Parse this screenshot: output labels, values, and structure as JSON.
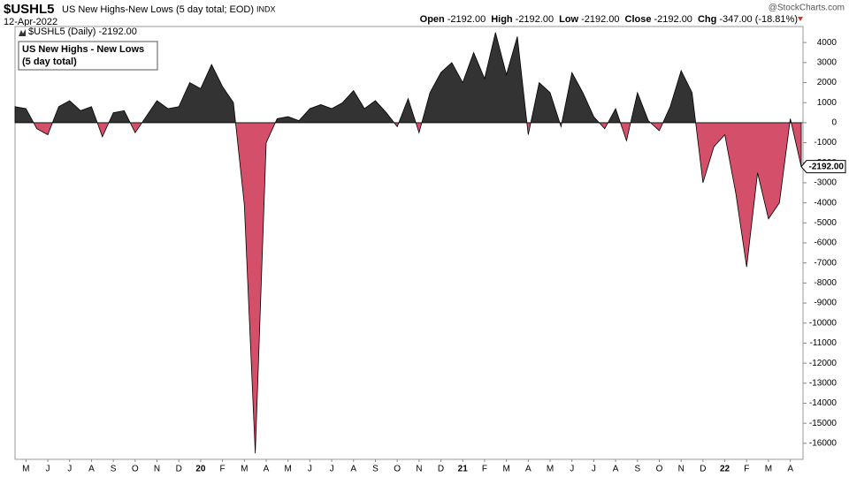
{
  "header": {
    "symbol": "$USHL5",
    "description": "US New Highs-New Lows (5 day total; EOD)",
    "exchange": "INDX",
    "date": "12-Apr-2022",
    "quote": [
      {
        "label": "Open",
        "value": "-2192.00"
      },
      {
        "label": "High",
        "value": "-2192.00"
      },
      {
        "label": "Low",
        "value": "-2192.00"
      },
      {
        "label": "Close",
        "value": "-2192.00"
      },
      {
        "label": "Chg",
        "value": "-347.00 (-18.81%)"
      }
    ],
    "watermark": "@StockCharts.com"
  },
  "chart_data": {
    "type": "area",
    "annotation": [
      "US New Highs - New Lows",
      "(5 day total)"
    ],
    "last_value_label": "-2192.00",
    "categories": [
      null,
      "M",
      null,
      "J",
      null,
      "J",
      null,
      "A",
      null,
      "S",
      null,
      "O",
      null,
      "N",
      null,
      "D",
      null,
      "20",
      null,
      "F",
      null,
      "M",
      null,
      "A",
      null,
      "M",
      null,
      "J",
      null,
      "J",
      null,
      "A",
      null,
      "S",
      null,
      "O",
      null,
      "N",
      null,
      "D",
      null,
      "21",
      null,
      "F",
      null,
      "M",
      null,
      "A",
      null,
      "M",
      null,
      "J",
      null,
      "J",
      null,
      "A",
      null,
      "S",
      null,
      "O",
      null,
      "N",
      null,
      "D",
      null,
      "22",
      null,
      "F",
      null,
      "M",
      null,
      "A",
      null
    ],
    "series": [
      {
        "name": "$USHL5 (Daily) -2192.00",
        "color": "#333333",
        "negative_color": "#d4506a",
        "values": [
          800,
          700,
          -300,
          -600,
          800,
          1100,
          600,
          800,
          -700,
          500,
          600,
          -500,
          300,
          1100,
          700,
          800,
          2000,
          1700,
          2900,
          1800,
          1000,
          -4100,
          -16500,
          -1000,
          200,
          300,
          100,
          700,
          900,
          700,
          1000,
          1600,
          700,
          1100,
          500,
          -200,
          1200,
          -500,
          1500,
          2500,
          3000,
          2000,
          3500,
          2200,
          4500,
          2400,
          4300,
          -600,
          2000,
          1500,
          -200,
          2500,
          1500,
          300,
          -300,
          700,
          -900,
          1500,
          100,
          -400,
          800,
          2600,
          1500,
          -3000,
          -1200,
          -600,
          -3500,
          -7200,
          -2500,
          -4800,
          -4000,
          200,
          -2192
        ]
      }
    ],
    "ylim": [
      -16800,
      4800
    ],
    "yticks": [
      4000,
      3000,
      2000,
      1000,
      0,
      -1000,
      -2000,
      -3000,
      -4000,
      -5000,
      -6000,
      -7000,
      -8000,
      -9000,
      -10000,
      -11000,
      -12000,
      -13000,
      -14000,
      -15000,
      -16000
    ],
    "grid": false
  }
}
